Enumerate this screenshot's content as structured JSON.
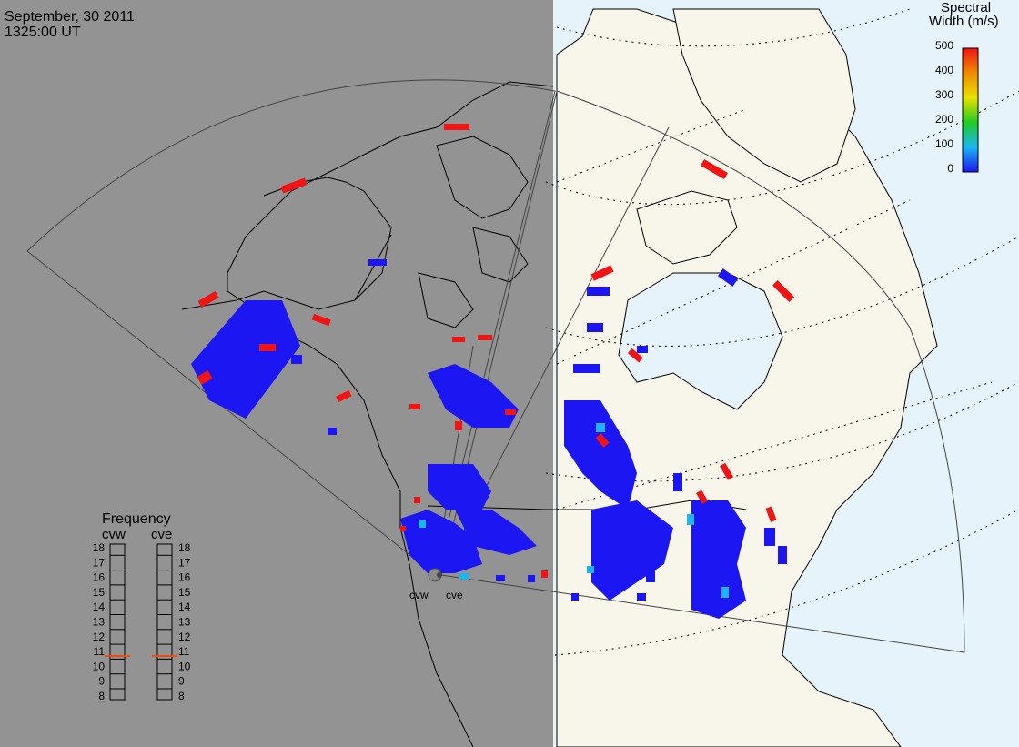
{
  "header": {
    "date": "September, 30 2011",
    "time": "1325:00 UT"
  },
  "colorbar": {
    "title_line1": "Spectral",
    "title_line2": "Width (m/s)",
    "ticks": [
      "500",
      "400",
      "300",
      "200",
      "100",
      "0"
    ]
  },
  "stations": [
    {
      "code": "cvw"
    },
    {
      "code": "cve"
    }
  ],
  "frequency_panel": {
    "title": "Frequency",
    "columns": [
      "cvw",
      "cve"
    ],
    "scale": [
      "18",
      "17",
      "16",
      "15",
      "14",
      "13",
      "12",
      "11",
      "10",
      "9",
      "8"
    ],
    "markers": [
      {
        "station": "cvw",
        "value": 10.7
      },
      {
        "station": "cve",
        "value": 10.7
      }
    ]
  },
  "colors": {
    "night": "#939393",
    "day_land": "#f8f6ea",
    "day_ocean": "#e6f3fb",
    "scatter_low": "#1c16f2",
    "scatter_mid": "#19b6f0",
    "scatter_high": "#f01414",
    "marker": "#f04a10"
  }
}
